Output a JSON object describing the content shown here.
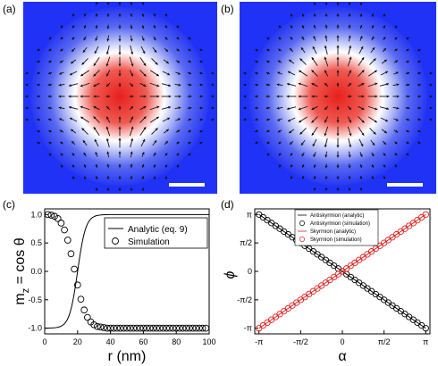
{
  "panels": {
    "a": {
      "label": "(a)",
      "texture": "antiskyrmion"
    },
    "b": {
      "label": "(b)",
      "texture": "skyrmion"
    },
    "c": {
      "label": "(c)"
    },
    "d": {
      "label": "(d)"
    }
  },
  "colors": {
    "core": "#e8201c",
    "background": "#1f32f5",
    "wall": "#ffffff",
    "antisk": "#000000",
    "sk": "#e0201c"
  },
  "chart_data": [
    {
      "panel": "c",
      "type": "line",
      "xlabel": "r (nm)",
      "ylabel": "m_z = cos θ",
      "ylabel_parts": {
        "main": "m",
        "sub": "z",
        "rest": " = cos θ"
      },
      "xlim": [
        0,
        100
      ],
      "ylim": [
        -1.1,
        1.1
      ],
      "xticks": [
        0,
        20,
        40,
        60,
        80,
        100
      ],
      "yticks": [
        -1.0,
        -0.5,
        0.0,
        0.5,
        1.0
      ],
      "ytick_labels": [
        "-1.0",
        "-0.5",
        "0.0",
        "0.5",
        "1.0"
      ],
      "legend": {
        "position": "top-right",
        "entries": [
          "Analytic (eq. 9)",
          "Simulation"
        ]
      },
      "series": [
        {
          "name": "Analytic (eq. 9)",
          "style": "line",
          "model": {
            "R": 20,
            "w": 5
          }
        },
        {
          "name": "Simulation",
          "style": "open-circle",
          "x": [
            2,
            4,
            6,
            8,
            10,
            12,
            14,
            16,
            18,
            20,
            22,
            24,
            26,
            28,
            30,
            32,
            34,
            36,
            38,
            40,
            42,
            44,
            46,
            48,
            50,
            52,
            54,
            56,
            58,
            60,
            62,
            64,
            66,
            68,
            70,
            72,
            74,
            76,
            78,
            80,
            82,
            84,
            86,
            88,
            90,
            92,
            94,
            96,
            98
          ],
          "y": [
            1.0,
            0.99,
            0.97,
            0.93,
            0.85,
            0.73,
            0.55,
            0.31,
            0.04,
            -0.24,
            -0.49,
            -0.68,
            -0.81,
            -0.89,
            -0.94,
            -0.97,
            -0.98,
            -0.99,
            -1.0,
            -1.0,
            -1.0,
            -1.0,
            -1.0,
            -1.0,
            -1.0,
            -1.0,
            -1.0,
            -1.0,
            -1.0,
            -1.0,
            -1.0,
            -1.0,
            -1.0,
            -1.0,
            -1.0,
            -1.0,
            -1.0,
            -1.0,
            -1.0,
            -1.0,
            -1.0,
            -1.0,
            -1.0,
            -1.0,
            -1.0,
            -1.0,
            -1.0,
            -1.0,
            -1.0
          ]
        }
      ]
    },
    {
      "panel": "d",
      "type": "line",
      "xlabel": "α",
      "ylabel": "ϕ",
      "xlim": [
        -3.3,
        3.3
      ],
      "ylim": [
        -3.45,
        3.45
      ],
      "ticks": [
        -3.14159,
        -1.5708,
        0,
        1.5708,
        3.14159
      ],
      "xtick_labels": [
        "-π",
        "-π/2",
        "0",
        "π/2",
        "π"
      ],
      "ytick_labels": [
        "-π",
        "-π/2",
        "0",
        "π/2",
        "π"
      ],
      "legend": {
        "position": "top-center",
        "entries": [
          "Antiskyrmion (analytic)",
          "Antiskyrmion (simulation)",
          "Skyrmion (analytic)",
          "Skyrmion (simulation)"
        ]
      },
      "series": [
        {
          "name": "Antiskyrmion (analytic)",
          "style": "line",
          "color": "#000000",
          "slope": -1
        },
        {
          "name": "Antiskyrmion (simulation)",
          "style": "open-circle",
          "color": "#000000",
          "slope": -1,
          "count": 40
        },
        {
          "name": "Skyrmion (analytic)",
          "style": "line",
          "color": "#e0201c",
          "slope": 1
        },
        {
          "name": "Skyrmion (simulation)",
          "style": "open-circle",
          "color": "#e0201c",
          "slope": 1,
          "count": 40
        }
      ]
    }
  ]
}
